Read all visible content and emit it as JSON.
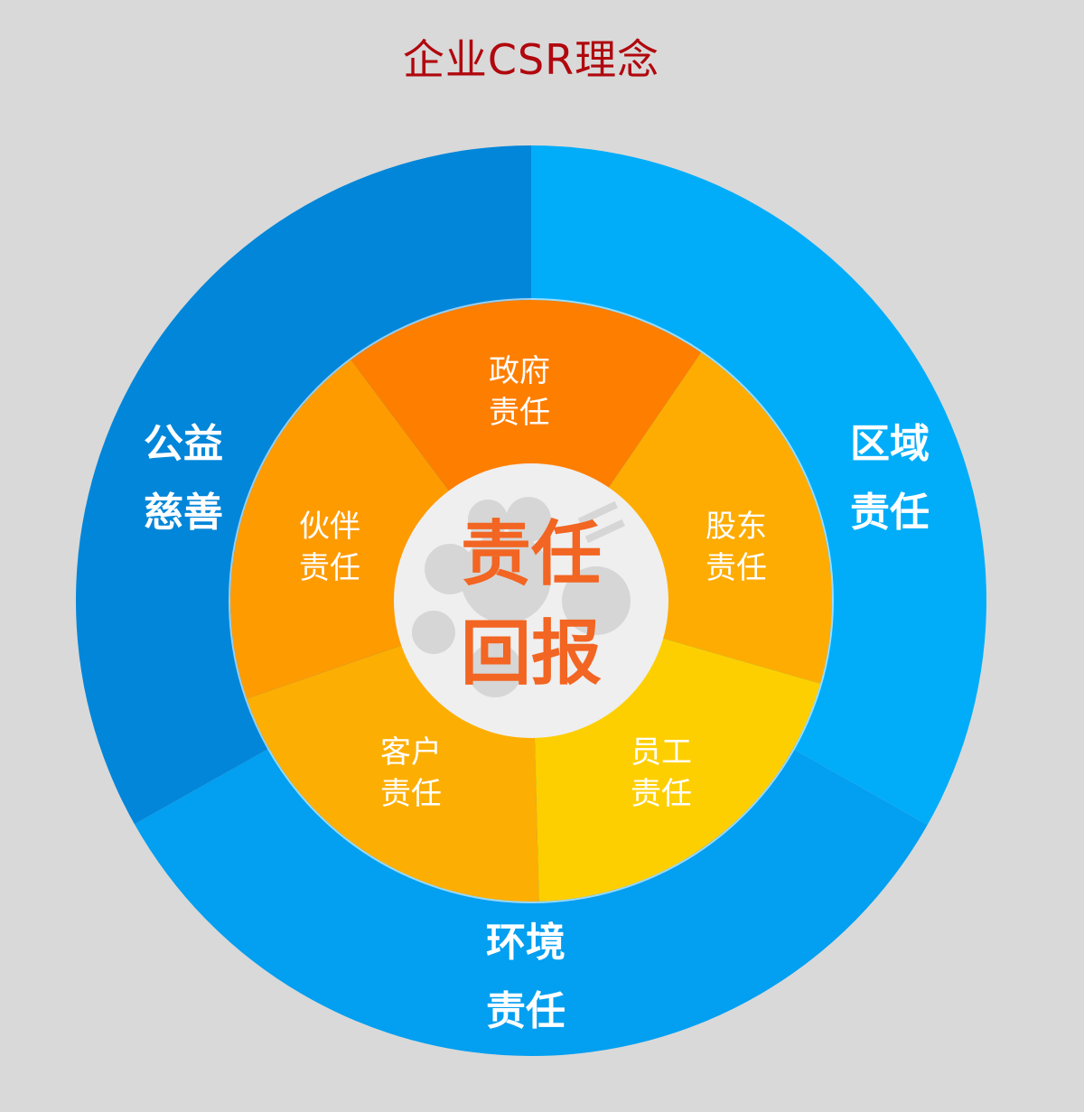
{
  "title": "企业CSR理念",
  "colors": {
    "background": "#d9d9d9",
    "title": "#b0080e",
    "center_fill": "#efefef",
    "center_deco": "#d6d6d6",
    "center_text": "#f26522"
  },
  "center": {
    "line1": "责任",
    "line2": "回报"
  },
  "outer_segments": [
    {
      "line1": "区域",
      "line2": "责任",
      "color": "#01adf9"
    },
    {
      "line1": "环境",
      "line2": "责任",
      "color": "#039ff0"
    },
    {
      "line1": "公益",
      "line2": "慈善",
      "color": "#0286d9"
    }
  ],
  "inner_segments": [
    {
      "line1": "政府",
      "line2": "责任",
      "color": "#fe7e00"
    },
    {
      "line1": "股东",
      "line2": "责任",
      "color": "#feac01"
    },
    {
      "line1": "员工",
      "line2": "责任",
      "color": "#fecf00"
    },
    {
      "line1": "客户",
      "line2": "责任",
      "color": "#fdae02"
    },
    {
      "line1": "伙伴",
      "line2": "责任",
      "color": "#fe9b01"
    }
  ]
}
